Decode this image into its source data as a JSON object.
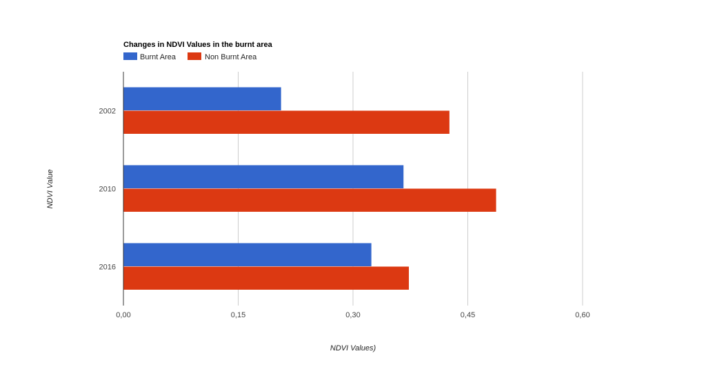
{
  "chart_data": {
    "type": "bar",
    "orientation": "horizontal",
    "title": "Changes in NDVI Values in the burnt area",
    "categories": [
      "2002",
      "2010",
      "2016"
    ],
    "series": [
      {
        "name": "Burnt Area",
        "color": "#3366cc",
        "values": [
          0.206,
          0.366,
          0.324
        ]
      },
      {
        "name": "Non Burnt Area",
        "color": "#dc3912",
        "values": [
          0.426,
          0.487,
          0.373
        ]
      }
    ],
    "xlabel": "NDVI Values)",
    "ylabel": "NDVI Value",
    "xlim": [
      0,
      0.6
    ],
    "xticks": [
      0,
      0.15,
      0.3,
      0.45,
      0.6
    ],
    "xtick_labels": [
      "0,00",
      "0,15",
      "0,30",
      "0,45",
      "0,60"
    ],
    "grid": true,
    "legend_position": "top-left"
  }
}
